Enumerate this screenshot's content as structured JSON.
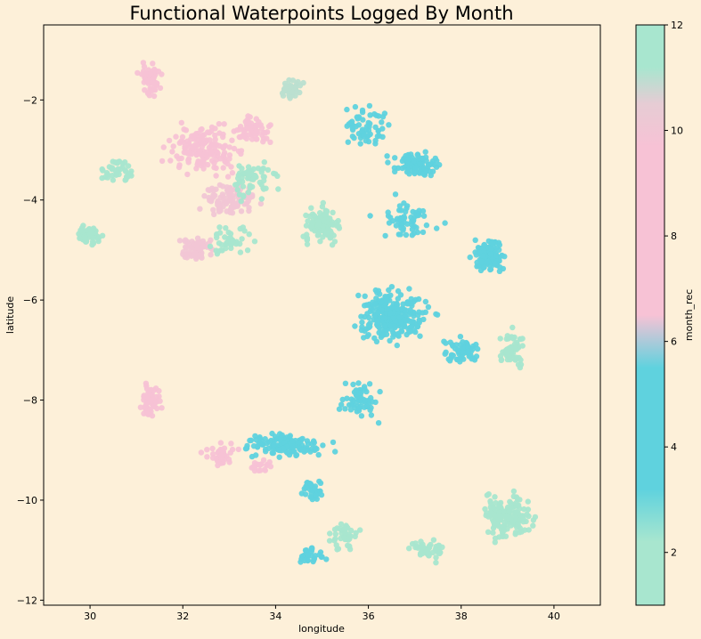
{
  "chart_data": {
    "type": "scatter",
    "title": "Functional Waterpoints Logged By Month",
    "xlabel": "longitude",
    "ylabel": "latitude",
    "xlim": [
      29.0,
      41.0
    ],
    "ylim": [
      -12.1,
      -0.5
    ],
    "xticks": [
      30,
      32,
      34,
      36,
      38,
      40
    ],
    "yticks": [
      -2,
      -4,
      -6,
      -8,
      -10,
      -12
    ],
    "grid": false,
    "background": "#fdf0d9",
    "colorbar": {
      "label": "month_rec",
      "range": [
        1,
        12
      ],
      "ticks": [
        2,
        4,
        6,
        8,
        10,
        12
      ],
      "stops": [
        {
          "value": 1,
          "color": "#a8e6cf"
        },
        {
          "value": 2.2,
          "color": "#a8e6cf"
        },
        {
          "value": 3.2,
          "color": "#5fd2de"
        },
        {
          "value": 5.5,
          "color": "#5fd2de"
        },
        {
          "value": 6.5,
          "color": "#f7c2d5"
        },
        {
          "value": 9.7,
          "color": "#f7c2d5"
        },
        {
          "value": 10.5,
          "color": "#e6ccd4"
        },
        {
          "value": 11.2,
          "color": "#a8e6cf"
        },
        {
          "value": 12,
          "color": "#a8e6cf"
        }
      ]
    },
    "clusters": [
      {
        "lon": 31.3,
        "lat": -1.6,
        "spread": [
          0.35,
          0.5
        ],
        "month": 8,
        "count": 60
      },
      {
        "lon": 32.5,
        "lat": -3.0,
        "spread": [
          1.2,
          0.7
        ],
        "month": 8,
        "count": 150
      },
      {
        "lon": 33.5,
        "lat": -2.6,
        "spread": [
          0.6,
          0.4
        ],
        "month": 9,
        "count": 60
      },
      {
        "lon": 34.3,
        "lat": -1.8,
        "spread": [
          0.4,
          0.3
        ],
        "month": 11,
        "count": 40
      },
      {
        "lon": 33.0,
        "lat": -4.0,
        "spread": [
          0.9,
          0.5
        ],
        "month": 10,
        "count": 100
      },
      {
        "lon": 33.5,
        "lat": -3.6,
        "spread": [
          0.8,
          0.6
        ],
        "month": 2,
        "count": 60
      },
      {
        "lon": 30.6,
        "lat": -3.4,
        "spread": [
          0.45,
          0.4
        ],
        "month": 2,
        "count": 40
      },
      {
        "lon": 30.0,
        "lat": -4.7,
        "spread": [
          0.4,
          0.35
        ],
        "month": 2,
        "count": 60
      },
      {
        "lon": 32.3,
        "lat": -5.0,
        "spread": [
          0.6,
          0.4
        ],
        "month": 10,
        "count": 60
      },
      {
        "lon": 33.0,
        "lat": -4.8,
        "spread": [
          0.7,
          0.5
        ],
        "month": 2,
        "count": 40
      },
      {
        "lon": 35.0,
        "lat": -4.5,
        "spread": [
          0.6,
          0.5
        ],
        "month": 2,
        "count": 140
      },
      {
        "lon": 36.0,
        "lat": -2.5,
        "spread": [
          0.7,
          0.6
        ],
        "month": 4,
        "count": 60
      },
      {
        "lon": 37.0,
        "lat": -3.3,
        "spread": [
          0.8,
          0.35
        ],
        "month": 4,
        "count": 100
      },
      {
        "lon": 36.8,
        "lat": -4.4,
        "spread": [
          1.0,
          0.6
        ],
        "month": 4,
        "count": 60
      },
      {
        "lon": 38.6,
        "lat": -5.1,
        "spread": [
          0.5,
          0.5
        ],
        "month": 4,
        "count": 120
      },
      {
        "lon": 36.5,
        "lat": -6.3,
        "spread": [
          1.2,
          0.8
        ],
        "month": 4,
        "count": 260
      },
      {
        "lon": 38.0,
        "lat": -7.0,
        "spread": [
          0.6,
          0.4
        ],
        "month": 4,
        "count": 60
      },
      {
        "lon": 39.1,
        "lat": -7.0,
        "spread": [
          0.4,
          0.6
        ],
        "month": 2,
        "count": 60
      },
      {
        "lon": 35.8,
        "lat": -8.0,
        "spread": [
          0.6,
          0.5
        ],
        "month": 4,
        "count": 60
      },
      {
        "lon": 34.2,
        "lat": -8.9,
        "spread": [
          1.2,
          0.35
        ],
        "month": 4,
        "count": 140
      },
      {
        "lon": 32.8,
        "lat": -9.1,
        "spread": [
          0.5,
          0.3
        ],
        "month": 9,
        "count": 40
      },
      {
        "lon": 33.7,
        "lat": -9.3,
        "spread": [
          0.4,
          0.2
        ],
        "month": 9,
        "count": 20
      },
      {
        "lon": 34.8,
        "lat": -9.8,
        "spread": [
          0.4,
          0.4
        ],
        "month": 4,
        "count": 40
      },
      {
        "lon": 31.3,
        "lat": -8.0,
        "spread": [
          0.35,
          0.6
        ],
        "month": 8,
        "count": 60
      },
      {
        "lon": 39.0,
        "lat": -10.3,
        "spread": [
          0.8,
          0.7
        ],
        "month": 2,
        "count": 150
      },
      {
        "lon": 37.3,
        "lat": -11.0,
        "spread": [
          0.6,
          0.3
        ],
        "month": 2,
        "count": 50
      },
      {
        "lon": 35.5,
        "lat": -10.7,
        "spread": [
          0.5,
          0.4
        ],
        "month": 2,
        "count": 40
      },
      {
        "lon": 34.8,
        "lat": -11.1,
        "spread": [
          0.4,
          0.3
        ],
        "month": 4,
        "count": 30
      }
    ]
  }
}
